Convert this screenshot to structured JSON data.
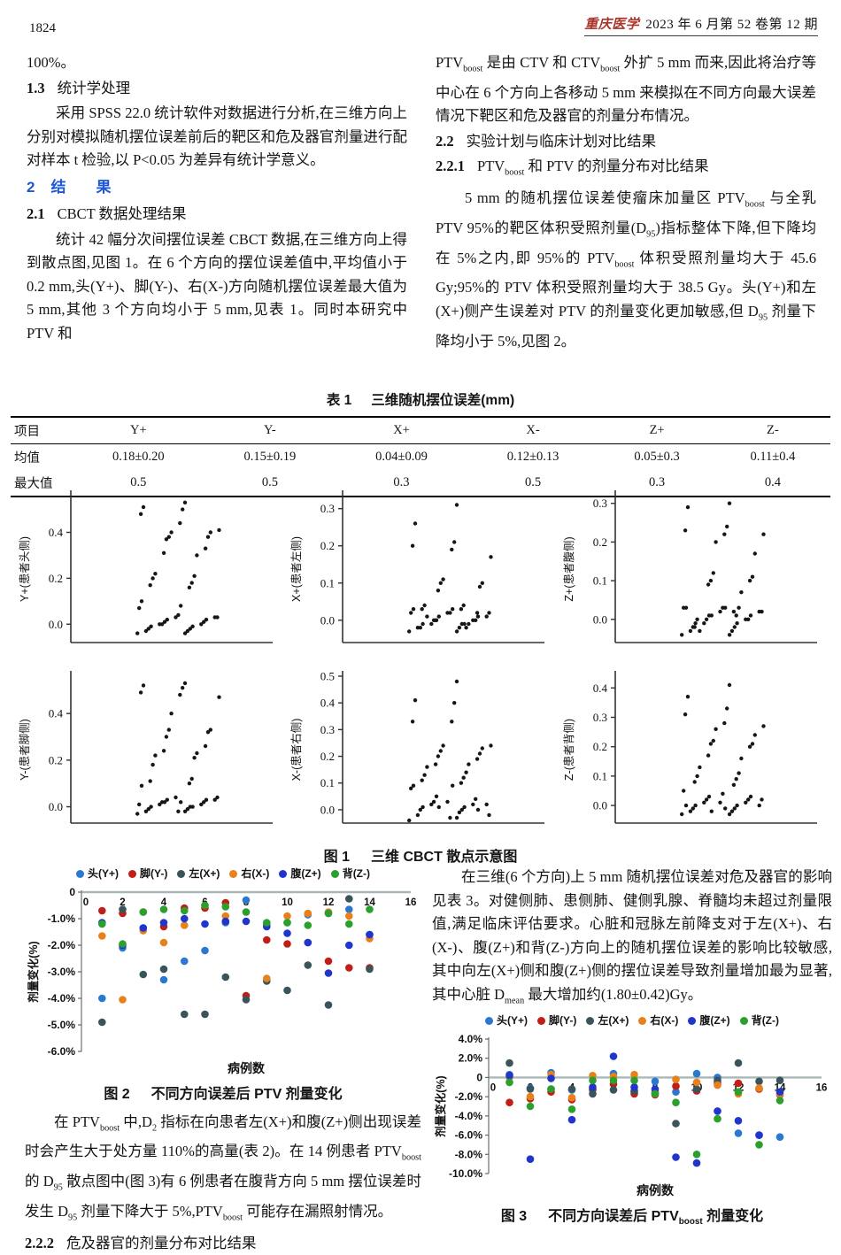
{
  "colors": {
    "heading_blue": "#1d58d8",
    "journal_red": "#a8342a",
    "axis_gray": "#a9b7b9"
  },
  "header": {
    "page_number": "1824",
    "journal": "重庆医学",
    "issue": "2023 年 6 月第 52 卷第 12 期"
  },
  "left_col": {
    "p0": "100%。",
    "h13": [
      "1.3",
      "统计学处理"
    ],
    "p1": "采用 SPSS 22.0 统计软件对数据进行分析,在三维方向上分别对模拟随机摆位误差前后的靶区和危及器官剂量进行配对样本 t 检验,以 P<0.05 为差异有统计学意义。",
    "h2": [
      "2",
      "结　　果"
    ],
    "h21": [
      "2.1",
      "CBCT 数据处理结果"
    ],
    "p2": "统计 42 幅分次间摆位误差 CBCT 数据,在三维方向上得到散点图,见图 1。在 6 个方向的摆位误差值中,平均值小于 0.2 mm,头(Y+)、脚(Y-)、右(X-)方向随机摆位误差最大值为 5 mm,其他 3 个方向均小于 5 mm,见表 1。同时本研究中 PTV 和"
  },
  "right_col": {
    "p3": [
      "PTV",
      "boost",
      " 是由 CTV 和 CTV",
      "boost",
      " 外扩 5 mm 而来,因此将治疗等中心在 6 个方向上各移动 5 mm 来模拟在不同方向最大误差情况下靶区和危及器官的剂量分布情况。"
    ],
    "h22": [
      "2.2",
      "实验计划与临床计划对比结果"
    ],
    "h221": [
      "2.2.1",
      "PTV",
      "boost",
      " 和 PTV 的剂量分布对比结果"
    ],
    "p4": [
      "5 mm 的随机摆位误差使瘤床加量区 PTV",
      "boost",
      " 与全乳 PTV 95%的靶区体积受照剂量(D",
      "95",
      ")指标整体下降,但下降均在 5%之内,即 95%的 PTV",
      "boost",
      " 体积受照剂量均大于 45.6 Gy;95%的 PTV 体积受照剂量均大于 38.5 Gy。头(Y+)和左(X+)侧产生误差对 PTV 的剂量变化更加敏感,但 D",
      "95",
      " 剂量下降均小于 5%,见图 2。"
    ]
  },
  "bottom_left": {
    "p5": [
      "在 PTV",
      "boost",
      " 中,D",
      "2",
      " 指标在向患者左(X+)和腹(Z+)侧出现误差时会产生大于处方量 110%的高量(表 2)。在 14 例患者 PTV",
      "boost",
      " 的 D",
      "95",
      " 散点图中(图 3)有 6 例患者在腹背方向 5 mm 摆位误差时发生 D",
      "95",
      " 剂量下降大于 5%,PTV",
      "boost",
      " 可能存在漏照射情况。"
    ],
    "h222": [
      "2.2.2",
      "危及器官的剂量分布对比结果"
    ]
  },
  "bottom_right": {
    "p6": [
      "在三维(6 个方向)上 5 mm 随机摆位误差对危及器官的影响见表 3。对健侧肺、患侧肺、健侧乳腺、脊髓均未超过剂量限值,满足临床评估要求。心脏和冠脉左前降支对于左(X+)、右(X-)、腹(Z+)和背(Z-)方向上的随机摆位误差的影响比较敏感,其中向左(X+)侧和腹(Z+)侧的摆位误差导致剂量增加最为显著,其中心脏 D",
      "mean",
      " 最大增加约(1.80±0.42)Gy。"
    ]
  },
  "table1": {
    "caption": [
      "表 1",
      "三维随机摆位误差(mm)"
    ],
    "headers": [
      "项目",
      "Y+",
      "Y-",
      "X+",
      "X-",
      "Z+",
      "Z-"
    ],
    "rows": [
      [
        "均值",
        "0.18±0.20",
        "0.15±0.19",
        "0.04±0.09",
        "0.12±0.13",
        "0.05±0.3",
        "0.11±0.4"
      ],
      [
        "最大值",
        "0.5",
        "0.5",
        "0.3",
        "0.5",
        "0.3",
        "0.4"
      ]
    ]
  },
  "chart_data": [
    {
      "id": "fig1",
      "type": "scatter",
      "variant": "strip",
      "caption": [
        "图 1",
        "三维 CBCT 散点示意图"
      ],
      "subplots": [
        {
          "ylabel": "Y+(患者头侧)",
          "yticks": [
            0.0,
            0.2,
            0.4
          ],
          "ylim": [
            -0.08,
            0.56
          ],
          "values": [
            -0.04,
            -0.04,
            -0.03,
            -0.03,
            -0.02,
            -0.02,
            -0.01,
            -0.01,
            0,
            0,
            0,
            0.01,
            0.01,
            0.02,
            0.02,
            0.03,
            0.03,
            0.03,
            0.04,
            0.07,
            0.08,
            0.1,
            0.16,
            0.17,
            0.18,
            0.2,
            0.21,
            0.22,
            0.3,
            0.31,
            0.33,
            0.37,
            0.38,
            0.38,
            0.4,
            0.4,
            0.41,
            0.44,
            0.48,
            0.5,
            0.51,
            0.53
          ]
        },
        {
          "ylabel": "X+(患者左侧)",
          "yticks": [
            0.0,
            0.1,
            0.2,
            0.3
          ],
          "ylim": [
            -0.06,
            0.335
          ],
          "values": [
            -0.03,
            -0.03,
            -0.02,
            -0.02,
            -0.02,
            -0.01,
            -0.01,
            -0.01,
            -0.01,
            0,
            0,
            0,
            0,
            0.01,
            0.01,
            0.01,
            0.02,
            0.02,
            0.02,
            0.02,
            0.03,
            0.03,
            0.03,
            0.03,
            0.04,
            0.04,
            -0.02,
            0.01,
            -0.01,
            0,
            0.02,
            0.08,
            0.09,
            0.1,
            0.1,
            0.11,
            0.17,
            0.19,
            0.2,
            0.21,
            0.26,
            0.31
          ]
        },
        {
          "ylabel": "Z+(患者腹侧)",
          "yticks": [
            0.0,
            0.1,
            0.2,
            0.3
          ],
          "ylim": [
            -0.06,
            0.32
          ],
          "values": [
            -0.04,
            -0.04,
            -0.03,
            -0.03,
            -0.02,
            -0.02,
            -0.01,
            -0.01,
            -0.01,
            0,
            0,
            0,
            0.01,
            0.01,
            0.01,
            0.02,
            0.02,
            0.02,
            0.03,
            0.03,
            0.03,
            0.03,
            0.02,
            -0.02,
            0.01,
            0,
            0.03,
            -0.03,
            0.07,
            0.09,
            0.1,
            0.1,
            0.11,
            0.12,
            0.17,
            0.2,
            0.22,
            0.22,
            0.23,
            0.24,
            0.29,
            0.3
          ]
        },
        {
          "ylabel": "Y-(患者脚侧)",
          "yticks": [
            0.0,
            0.2,
            0.4
          ],
          "ylim": [
            -0.07,
            0.56
          ],
          "values": [
            -0.03,
            -0.02,
            -0.02,
            -0.01,
            -0.01,
            0,
            0,
            0,
            0.01,
            0.01,
            0.02,
            0.02,
            0.02,
            0.03,
            0.03,
            0.03,
            0.04,
            0.04,
            -0.02,
            0.01,
            0.02,
            0.09,
            0.1,
            0.11,
            0.12,
            0.18,
            0.21,
            0.22,
            0.23,
            0.24,
            0.26,
            0.3,
            0.32,
            0.33,
            0.33,
            0.4,
            0.47,
            0.48,
            0.49,
            0.51,
            0.52,
            0.53
          ]
        },
        {
          "ylabel": "X-(患者右侧)",
          "yticks": [
            0.0,
            0.1,
            0.2,
            0.3,
            0.4,
            0.5
          ],
          "ylim": [
            -0.05,
            0.5
          ],
          "values": [
            -0.04,
            -0.03,
            -0.02,
            -0.01,
            0,
            0,
            0.01,
            0.01,
            0.02,
            0.02,
            0.03,
            0.04,
            0.05,
            0,
            0.01,
            0.02,
            0.03,
            -0.02,
            -0.03,
            0.08,
            0.09,
            0.09,
            0.1,
            0.11,
            0.12,
            0.13,
            0.14,
            0.16,
            0.17,
            0.17,
            0.19,
            0.2,
            0.21,
            0.22,
            0.23,
            0.24,
            0.24,
            0.33,
            0.33,
            0.4,
            0.41,
            0.48
          ]
        },
        {
          "ylabel": "Z-(患者背侧)",
          "yticks": [
            0.0,
            0.1,
            0.2,
            0.3,
            0.4
          ],
          "ylim": [
            -0.06,
            0.44
          ],
          "values": [
            -0.03,
            -0.03,
            -0.02,
            -0.02,
            -0.01,
            -0.01,
            0,
            0,
            0.01,
            0.01,
            0.02,
            0.02,
            0.03,
            0.03,
            -0.02,
            0,
            0.01,
            0.02,
            0.04,
            0.05,
            -0.01,
            0,
            0.07,
            0.08,
            0.09,
            0.1,
            0.11,
            0.13,
            0.16,
            0.17,
            0.2,
            0.21,
            0.21,
            0.22,
            0.24,
            0.26,
            0.27,
            0.28,
            0.31,
            0.33,
            0.37,
            0.41
          ]
        }
      ]
    },
    {
      "id": "fig2",
      "type": "scatter",
      "caption": [
        "图 2",
        "不同方向误差后 PTV 剂量变化"
      ],
      "xlabel": "病例数",
      "ylabel": "剂量变化(%)",
      "xlim": [
        0,
        16
      ],
      "ylim": [
        -6,
        0
      ],
      "xticks": [
        0,
        2,
        4,
        6,
        8,
        10,
        12,
        14,
        16
      ],
      "yticks": [
        {
          "v": 0,
          "label": "0"
        },
        {
          "v": -1,
          "label": "-1.0%"
        },
        {
          "v": -2,
          "label": "-2.0%"
        },
        {
          "v": -3,
          "label": "-3.0%"
        },
        {
          "v": -4,
          "label": "-4.0%"
        },
        {
          "v": -5,
          "label": "-5.0%"
        },
        {
          "v": -6,
          "label": "-6.0%"
        }
      ],
      "series": [
        {
          "name": "头(Y+)",
          "color": "#2b78d0",
          "values": [
            -4.0,
            -2.1,
            -1.35,
            -3.3,
            -2.6,
            -2.2,
            -1.15,
            -0.3,
            -1.2,
            -1.15,
            -0.85,
            -0.8,
            -0.65,
            -1.6
          ]
        },
        {
          "name": "脚(Y-)",
          "color": "#c01e17",
          "values": [
            -0.7,
            -0.8,
            -0.75,
            -1.3,
            -0.6,
            -0.6,
            -0.4,
            -3.9,
            -1.8,
            -1.95,
            -1.9,
            -2.6,
            -2.85,
            -2.85
          ]
        },
        {
          "name": "左(X+)",
          "color": "#3a545c",
          "values": [
            -4.9,
            -0.65,
            -3.1,
            -2.9,
            -4.6,
            -4.6,
            -3.2,
            -4.05,
            -3.35,
            -3.7,
            -2.75,
            -4.25,
            -0.25,
            -2.9
          ]
        },
        {
          "name": "右(X-)",
          "color": "#e8811c",
          "values": [
            -1.65,
            -4.05,
            -1.45,
            -1.9,
            -1.25,
            -0.5,
            -0.9,
            -0.75,
            -3.25,
            -0.9,
            -0.8,
            -0.75,
            -0.9,
            -1.75
          ]
        },
        {
          "name": "腹(Z+)",
          "color": "#1f35cc",
          "values": [
            -1.15,
            -2.0,
            -1.35,
            -1.15,
            -1.0,
            -1.2,
            -1.1,
            -1.1,
            -1.3,
            -1.55,
            -1.9,
            -3.05,
            -2.0,
            -1.6
          ]
        },
        {
          "name": "背(Z-)",
          "color": "#2ca02c",
          "values": [
            -1.2,
            -1.95,
            -0.75,
            -0.65,
            -0.7,
            -0.5,
            -0.55,
            -0.75,
            -1.15,
            -1.15,
            -1.25,
            -0.8,
            -1.2,
            -0.65
          ]
        }
      ]
    },
    {
      "id": "fig3",
      "type": "scatter",
      "caption": [
        "图 3",
        "不同方向误差后 PTV",
        "boost",
        " 剂量变化"
      ],
      "xlabel": "病例数",
      "ylabel": "剂量变化(%)",
      "xlim": [
        0,
        16
      ],
      "ylim": [
        -10,
        4
      ],
      "xticks": [
        0,
        2,
        4,
        6,
        8,
        10,
        12,
        14,
        16
      ],
      "yticks": [
        {
          "v": 4,
          "label": "4.0%"
        },
        {
          "v": 2,
          "label": "2.0%"
        },
        {
          "v": 0,
          "label": "0"
        },
        {
          "v": -2,
          "label": "-2.0%"
        },
        {
          "v": -4,
          "label": "-4.0%"
        },
        {
          "v": -6,
          "label": "-6.0%"
        },
        {
          "v": -8,
          "label": "-8.0%"
        },
        {
          "v": -10,
          "label": "-10.0%"
        }
      ],
      "series": [
        {
          "name": "头(Y+)",
          "color": "#2b78d0",
          "values": [
            0.3,
            -1.1,
            0.5,
            -1.3,
            -1.3,
            0.4,
            -1.5,
            -0.4,
            -1.5,
            0.4,
            0.0,
            -5.8,
            -6.0,
            -6.2
          ]
        },
        {
          "name": "脚(Y-)",
          "color": "#c01e17",
          "values": [
            -2.6,
            -2.2,
            -1.5,
            -2.3,
            -1.2,
            -0.7,
            -1.7,
            -1.8,
            -0.9,
            -1.4,
            -0.6,
            -0.6,
            -1.2,
            -1.8
          ]
        },
        {
          "name": "左(X+)",
          "color": "#3a545c",
          "values": [
            1.5,
            -1.2,
            -1.2,
            -1.2,
            -1.7,
            -1.3,
            -1.4,
            -1.5,
            -4.8,
            -1.2,
            -0.3,
            1.5,
            -0.4,
            -0.3
          ]
        },
        {
          "name": "右(X-)",
          "color": "#e8811c",
          "values": [
            0.0,
            -2.0,
            0.3,
            -2.1,
            0.2,
            0.1,
            0.3,
            -1.6,
            -0.2,
            -0.5,
            -0.8,
            -1.7,
            -1.1,
            -1.7
          ]
        },
        {
          "name": "腹(Z+)",
          "color": "#1f35cc",
          "values": [
            0.2,
            -8.5,
            -0.1,
            -4.4,
            -1.0,
            2.2,
            -1.0,
            -1.2,
            -8.3,
            -8.9,
            -3.5,
            -4.5,
            -6.0,
            -1.5
          ]
        },
        {
          "name": "背(Z-)",
          "color": "#2ca02c",
          "values": [
            -0.5,
            -3.0,
            -1.2,
            -3.3,
            -0.3,
            -0.3,
            -0.3,
            -1.7,
            -2.6,
            -8.0,
            -4.3,
            -1.5,
            -7.0,
            -2.4
          ]
        }
      ]
    }
  ]
}
